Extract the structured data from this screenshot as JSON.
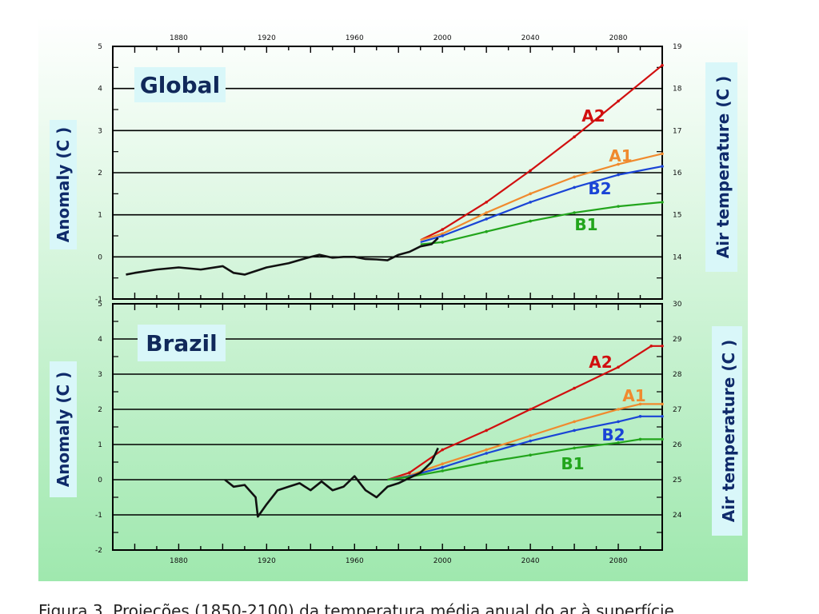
{
  "colors": {
    "A2": "#d10f0f",
    "A1": "#f08a2e",
    "B2": "#1a44d6",
    "B1": "#22a51c",
    "observed": "#111111",
    "background_top": "#ffffff",
    "background_bottom": "#9fe8ae",
    "label_box": "#d9f7f9"
  },
  "caption": "Figura 3. Projeções (1850-2100) da temperatura média anual do ar à superfície",
  "chart_data": [
    {
      "type": "line",
      "title": "Global",
      "ylabel": "Anomaly (C )",
      "ylabel_right": "Air temperature (C )",
      "xlim": [
        1850,
        2100
      ],
      "ylim": [
        -1,
        5
      ],
      "x_ticks": [
        1880,
        1920,
        1960,
        2000,
        2040,
        2080
      ],
      "x_ticks_position": "top",
      "y_ticks": [
        -1,
        0,
        1,
        2,
        3,
        4,
        5
      ],
      "y_ticks_right": [
        14,
        15,
        16,
        17,
        18,
        19
      ],
      "right_axis_offset": 14,
      "grid": true,
      "series": [
        {
          "name": "A2",
          "x": [
            1990,
            2000,
            2020,
            2040,
            2060,
            2080,
            2100
          ],
          "values": [
            0.4,
            0.65,
            1.3,
            2.05,
            2.85,
            3.7,
            4.55
          ]
        },
        {
          "name": "A1",
          "x": [
            1990,
            2000,
            2020,
            2040,
            2060,
            2080,
            2100
          ],
          "values": [
            0.4,
            0.55,
            1.05,
            1.5,
            1.9,
            2.2,
            2.45
          ]
        },
        {
          "name": "B2",
          "x": [
            1990,
            2000,
            2020,
            2040,
            2060,
            2080,
            2100
          ],
          "values": [
            0.35,
            0.5,
            0.9,
            1.3,
            1.65,
            1.95,
            2.15
          ]
        },
        {
          "name": "B1",
          "x": [
            1990,
            2000,
            2020,
            2040,
            2060,
            2080,
            2100
          ],
          "values": [
            0.3,
            0.35,
            0.6,
            0.85,
            1.05,
            1.2,
            1.3
          ]
        },
        {
          "name": "observed",
          "x": [
            1856,
            1860,
            1870,
            1880,
            1890,
            1900,
            1905,
            1910,
            1920,
            1930,
            1940,
            1944,
            1950,
            1955,
            1960,
            1965,
            1970,
            1975,
            1980,
            1985,
            1990,
            1995,
            1998
          ],
          "values": [
            -0.42,
            -0.38,
            -0.3,
            -0.25,
            -0.3,
            -0.22,
            -0.38,
            -0.42,
            -0.25,
            -0.15,
            0.0,
            0.05,
            -0.02,
            0.0,
            0.0,
            -0.05,
            -0.06,
            -0.08,
            0.05,
            0.12,
            0.25,
            0.3,
            0.45
          ]
        }
      ],
      "series_labels": [
        "A2",
        "A1",
        "B2",
        "B1"
      ]
    },
    {
      "type": "line",
      "title": "Brazil",
      "ylabel": "Anomaly (C )",
      "ylabel_right": "Air temperature (C )",
      "xlim": [
        1850,
        2100
      ],
      "ylim": [
        -2,
        5
      ],
      "x_ticks": [
        1880,
        1920,
        1960,
        2000,
        2040,
        2080
      ],
      "x_ticks_position": "bottom",
      "y_ticks": [
        -2,
        -1,
        0,
        1,
        2,
        3,
        4,
        5
      ],
      "y_ticks_right": [
        24,
        25,
        26,
        27,
        28,
        29,
        30
      ],
      "right_axis_offset": 25,
      "grid": true,
      "series": [
        {
          "name": "A2",
          "x": [
            1975,
            1985,
            2000,
            2020,
            2040,
            2060,
            2080,
            2095,
            2100
          ],
          "values": [
            0.0,
            0.2,
            0.85,
            1.4,
            2.0,
            2.6,
            3.2,
            3.8,
            3.8
          ]
        },
        {
          "name": "A1",
          "x": [
            1975,
            1985,
            2000,
            2020,
            2040,
            2060,
            2080,
            2090,
            2100
          ],
          "values": [
            0.0,
            0.12,
            0.45,
            0.85,
            1.25,
            1.65,
            2.0,
            2.15,
            2.15
          ]
        },
        {
          "name": "B2",
          "x": [
            1975,
            1985,
            2000,
            2020,
            2040,
            2060,
            2080,
            2090,
            2100
          ],
          "values": [
            0.0,
            0.1,
            0.35,
            0.75,
            1.1,
            1.4,
            1.65,
            1.8,
            1.8
          ]
        },
        {
          "name": "B1",
          "x": [
            1975,
            1985,
            2000,
            2020,
            2040,
            2060,
            2080,
            2090,
            2100
          ],
          "values": [
            0.0,
            0.08,
            0.25,
            0.5,
            0.7,
            0.9,
            1.05,
            1.15,
            1.15
          ]
        },
        {
          "name": "observed",
          "x": [
            1901,
            1905,
            1910,
            1915,
            1916,
            1920,
            1925,
            1930,
            1935,
            1940,
            1945,
            1950,
            1955,
            1960,
            1965,
            1970,
            1975,
            1980,
            1985,
            1990,
            1995,
            1998
          ],
          "values": [
            0.0,
            -0.2,
            -0.15,
            -0.5,
            -1.05,
            -0.7,
            -0.3,
            -0.2,
            -0.1,
            -0.3,
            -0.05,
            -0.3,
            -0.2,
            0.1,
            -0.3,
            -0.5,
            -0.2,
            -0.1,
            0.05,
            0.2,
            0.5,
            0.9
          ]
        }
      ],
      "series_labels": [
        "A2",
        "A1",
        "B2",
        "B1"
      ]
    }
  ]
}
